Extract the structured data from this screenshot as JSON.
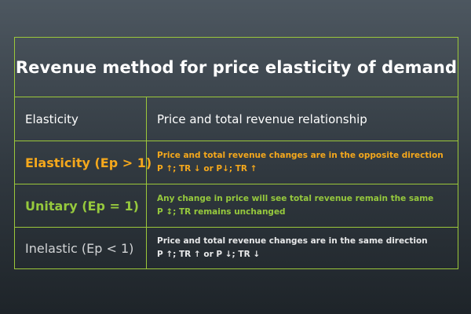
{
  "title": "Revenue method for price elasticity of demand",
  "header": {
    "col1": "Elasticity",
    "col2": "Price and total revenue relationship"
  },
  "rows": [
    {
      "label": "Elasticity (Ep > 1)",
      "line1": "Price and total revenue changes are in the opposite direction",
      "line2": "P ↑;  TR ↓ or P↓;  TR ↑",
      "color": "#f5a81c"
    },
    {
      "label": "Unitary (Ep = 1)",
      "line1": "Any change in price will see total revenue remain the same",
      "line2": "P ↕;  TR remains unchanged",
      "color": "#96c93d"
    },
    {
      "label": "Inelastic (Ep < 1)",
      "line1": "Price and total revenue changes are in the same direction",
      "line2": "P ↑;  TR ↑ or P ↓;  TR ↓",
      "color": "#d0d2d4"
    }
  ],
  "colors": {
    "border": "#9cc83a",
    "background_top": "#4d5760",
    "background_bottom": "#1e2429"
  }
}
